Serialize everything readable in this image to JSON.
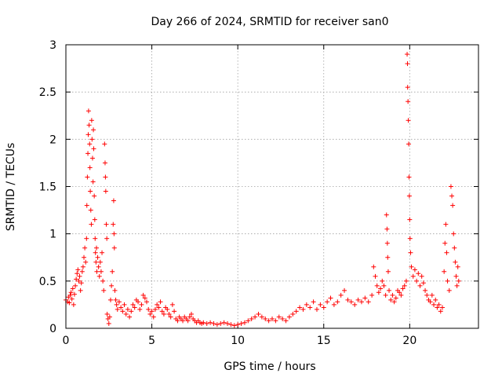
{
  "chart_data": {
    "type": "scatter",
    "title": "Day 266 of 2024, SRMTID for receiver san0",
    "xlabel": "GPS time / hours",
    "ylabel": "SRMTID / TECUs",
    "xlim": [
      0,
      24
    ],
    "ylim": [
      0,
      3
    ],
    "xticks": [
      0,
      5,
      10,
      15,
      20
    ],
    "yticks": [
      0,
      0.5,
      1,
      1.5,
      2,
      2.5,
      3
    ],
    "xtick_labels": [
      "0",
      "5",
      "10",
      "15",
      "20"
    ],
    "ytick_labels": [
      "0",
      "0.5",
      "1",
      "1.5",
      "2",
      "2.5",
      "3"
    ],
    "grid": true,
    "marker": "+",
    "color": "#ff0000",
    "series": [
      {
        "name": "SRMTID",
        "points": [
          [
            0.0,
            0.3
          ],
          [
            0.1,
            0.28
          ],
          [
            0.15,
            0.33
          ],
          [
            0.2,
            0.27
          ],
          [
            0.25,
            0.35
          ],
          [
            0.3,
            0.38
          ],
          [
            0.35,
            0.31
          ],
          [
            0.4,
            0.42
          ],
          [
            0.45,
            0.25
          ],
          [
            0.5,
            0.36
          ],
          [
            0.55,
            0.45
          ],
          [
            0.6,
            0.52
          ],
          [
            0.65,
            0.58
          ],
          [
            0.7,
            0.62
          ],
          [
            0.75,
            0.5
          ],
          [
            0.8,
            0.55
          ],
          [
            0.85,
            0.4
          ],
          [
            0.9,
            0.48
          ],
          [
            0.95,
            0.6
          ],
          [
            1.0,
            0.65
          ],
          [
            1.05,
            0.75
          ],
          [
            1.1,
            0.85
          ],
          [
            1.15,
            0.7
          ],
          [
            1.2,
            0.95
          ],
          [
            1.22,
            1.3
          ],
          [
            1.25,
            1.6
          ],
          [
            1.28,
            1.85
          ],
          [
            1.3,
            2.05
          ],
          [
            1.32,
            2.3
          ],
          [
            1.35,
            2.15
          ],
          [
            1.38,
            1.95
          ],
          [
            1.4,
            1.7
          ],
          [
            1.42,
            1.45
          ],
          [
            1.45,
            1.25
          ],
          [
            1.48,
            1.1
          ],
          [
            1.5,
            2.2
          ],
          [
            1.52,
            2.0
          ],
          [
            1.55,
            1.8
          ],
          [
            1.58,
            1.55
          ],
          [
            1.6,
            2.1
          ],
          [
            1.62,
            1.9
          ],
          [
            1.65,
            1.4
          ],
          [
            1.68,
            1.15
          ],
          [
            1.7,
            0.95
          ],
          [
            1.72,
            0.8
          ],
          [
            1.75,
            0.7
          ],
          [
            1.78,
            0.85
          ],
          [
            1.8,
            0.6
          ],
          [
            1.85,
            0.75
          ],
          [
            1.9,
            0.65
          ],
          [
            1.95,
            0.55
          ],
          [
            2.0,
            0.7
          ],
          [
            2.05,
            0.6
          ],
          [
            2.1,
            0.8
          ],
          [
            2.15,
            0.5
          ],
          [
            2.2,
            0.4
          ],
          [
            2.25,
            1.95
          ],
          [
            2.28,
            1.75
          ],
          [
            2.3,
            1.6
          ],
          [
            2.32,
            1.45
          ],
          [
            2.35,
            1.1
          ],
          [
            2.38,
            0.95
          ],
          [
            2.4,
            0.15
          ],
          [
            2.45,
            0.1
          ],
          [
            2.5,
            0.05
          ],
          [
            2.55,
            0.12
          ],
          [
            2.6,
            0.3
          ],
          [
            2.65,
            0.45
          ],
          [
            2.7,
            0.6
          ],
          [
            2.75,
            1.1
          ],
          [
            2.78,
            1.35
          ],
          [
            2.8,
            1.0
          ],
          [
            2.82,
            0.85
          ],
          [
            2.85,
            0.4
          ],
          [
            2.9,
            0.3
          ],
          [
            2.95,
            0.25
          ],
          [
            3.0,
            0.2
          ],
          [
            3.1,
            0.28
          ],
          [
            3.2,
            0.22
          ],
          [
            3.3,
            0.18
          ],
          [
            3.4,
            0.25
          ],
          [
            3.5,
            0.15
          ],
          [
            3.6,
            0.2
          ],
          [
            3.7,
            0.12
          ],
          [
            3.8,
            0.18
          ],
          [
            3.9,
            0.25
          ],
          [
            4.0,
            0.22
          ],
          [
            4.1,
            0.3
          ],
          [
            4.2,
            0.28
          ],
          [
            4.3,
            0.2
          ],
          [
            4.4,
            0.25
          ],
          [
            4.5,
            0.35
          ],
          [
            4.6,
            0.32
          ],
          [
            4.7,
            0.28
          ],
          [
            4.8,
            0.2
          ],
          [
            4.9,
            0.15
          ],
          [
            5.0,
            0.18
          ],
          [
            5.1,
            0.12
          ],
          [
            5.2,
            0.2
          ],
          [
            5.3,
            0.25
          ],
          [
            5.4,
            0.22
          ],
          [
            5.5,
            0.28
          ],
          [
            5.6,
            0.18
          ],
          [
            5.7,
            0.15
          ],
          [
            5.8,
            0.22
          ],
          [
            5.9,
            0.2
          ],
          [
            6.0,
            0.15
          ],
          [
            6.1,
            0.12
          ],
          [
            6.2,
            0.25
          ],
          [
            6.3,
            0.18
          ],
          [
            6.4,
            0.1
          ],
          [
            6.5,
            0.08
          ],
          [
            6.6,
            0.12
          ],
          [
            6.7,
            0.1
          ],
          [
            6.8,
            0.08
          ],
          [
            6.9,
            0.12
          ],
          [
            7.0,
            0.1
          ],
          [
            7.1,
            0.08
          ],
          [
            7.2,
            0.12
          ],
          [
            7.3,
            0.15
          ],
          [
            7.4,
            0.1
          ],
          [
            7.5,
            0.08
          ],
          [
            7.6,
            0.06
          ],
          [
            7.7,
            0.08
          ],
          [
            7.8,
            0.06
          ],
          [
            7.9,
            0.05
          ],
          [
            8.0,
            0.06
          ],
          [
            8.2,
            0.05
          ],
          [
            8.4,
            0.06
          ],
          [
            8.6,
            0.05
          ],
          [
            8.8,
            0.04
          ],
          [
            9.0,
            0.05
          ],
          [
            9.2,
            0.06
          ],
          [
            9.4,
            0.05
          ],
          [
            9.6,
            0.04
          ],
          [
            9.8,
            0.03
          ],
          [
            10.0,
            0.04
          ],
          [
            10.2,
            0.05
          ],
          [
            10.4,
            0.06
          ],
          [
            10.6,
            0.08
          ],
          [
            10.8,
            0.1
          ],
          [
            11.0,
            0.12
          ],
          [
            11.2,
            0.15
          ],
          [
            11.4,
            0.12
          ],
          [
            11.6,
            0.1
          ],
          [
            11.8,
            0.08
          ],
          [
            12.0,
            0.1
          ],
          [
            12.2,
            0.08
          ],
          [
            12.4,
            0.12
          ],
          [
            12.6,
            0.1
          ],
          [
            12.8,
            0.08
          ],
          [
            13.0,
            0.12
          ],
          [
            13.2,
            0.15
          ],
          [
            13.4,
            0.18
          ],
          [
            13.6,
            0.22
          ],
          [
            13.8,
            0.2
          ],
          [
            14.0,
            0.25
          ],
          [
            14.2,
            0.22
          ],
          [
            14.4,
            0.28
          ],
          [
            14.6,
            0.2
          ],
          [
            14.8,
            0.25
          ],
          [
            15.0,
            0.22
          ],
          [
            15.2,
            0.28
          ],
          [
            15.4,
            0.32
          ],
          [
            15.6,
            0.25
          ],
          [
            15.8,
            0.28
          ],
          [
            16.0,
            0.35
          ],
          [
            16.2,
            0.4
          ],
          [
            16.4,
            0.3
          ],
          [
            16.6,
            0.28
          ],
          [
            16.8,
            0.25
          ],
          [
            17.0,
            0.3
          ],
          [
            17.2,
            0.28
          ],
          [
            17.4,
            0.32
          ],
          [
            17.6,
            0.28
          ],
          [
            17.8,
            0.35
          ],
          [
            17.9,
            0.65
          ],
          [
            18.0,
            0.55
          ],
          [
            18.1,
            0.45
          ],
          [
            18.2,
            0.38
          ],
          [
            18.3,
            0.42
          ],
          [
            18.4,
            0.5
          ],
          [
            18.5,
            0.45
          ],
          [
            18.6,
            0.35
          ],
          [
            18.65,
            1.2
          ],
          [
            18.68,
            1.05
          ],
          [
            18.7,
            0.9
          ],
          [
            18.72,
            0.75
          ],
          [
            18.75,
            0.6
          ],
          [
            18.8,
            0.4
          ],
          [
            18.9,
            0.3
          ],
          [
            19.0,
            0.35
          ],
          [
            19.1,
            0.28
          ],
          [
            19.2,
            0.32
          ],
          [
            19.3,
            0.4
          ],
          [
            19.4,
            0.38
          ],
          [
            19.5,
            0.35
          ],
          [
            19.6,
            0.42
          ],
          [
            19.7,
            0.45
          ],
          [
            19.8,
            0.5
          ],
          [
            19.85,
            2.9
          ],
          [
            19.87,
            2.8
          ],
          [
            19.88,
            2.55
          ],
          [
            19.9,
            2.4
          ],
          [
            19.92,
            2.2
          ],
          [
            19.94,
            1.95
          ],
          [
            19.96,
            1.6
          ],
          [
            19.98,
            1.4
          ],
          [
            20.0,
            1.15
          ],
          [
            20.02,
            0.95
          ],
          [
            20.05,
            0.8
          ],
          [
            20.1,
            0.65
          ],
          [
            20.2,
            0.55
          ],
          [
            20.3,
            0.62
          ],
          [
            20.4,
            0.5
          ],
          [
            20.5,
            0.58
          ],
          [
            20.6,
            0.45
          ],
          [
            20.7,
            0.55
          ],
          [
            20.8,
            0.48
          ],
          [
            20.9,
            0.4
          ],
          [
            21.0,
            0.35
          ],
          [
            21.1,
            0.3
          ],
          [
            21.2,
            0.28
          ],
          [
            21.3,
            0.35
          ],
          [
            21.4,
            0.25
          ],
          [
            21.5,
            0.3
          ],
          [
            21.6,
            0.22
          ],
          [
            21.7,
            0.25
          ],
          [
            21.8,
            0.18
          ],
          [
            21.9,
            0.22
          ],
          [
            22.0,
            0.6
          ],
          [
            22.05,
            0.9
          ],
          [
            22.1,
            1.1
          ],
          [
            22.15,
            0.8
          ],
          [
            22.2,
            0.5
          ],
          [
            22.3,
            0.4
          ],
          [
            22.4,
            1.5
          ],
          [
            22.45,
            1.4
          ],
          [
            22.5,
            1.3
          ],
          [
            22.55,
            1.0
          ],
          [
            22.6,
            0.85
          ],
          [
            22.65,
            0.7
          ],
          [
            22.7,
            0.55
          ],
          [
            22.75,
            0.45
          ],
          [
            22.8,
            0.65
          ],
          [
            22.85,
            0.5
          ]
        ]
      }
    ]
  }
}
